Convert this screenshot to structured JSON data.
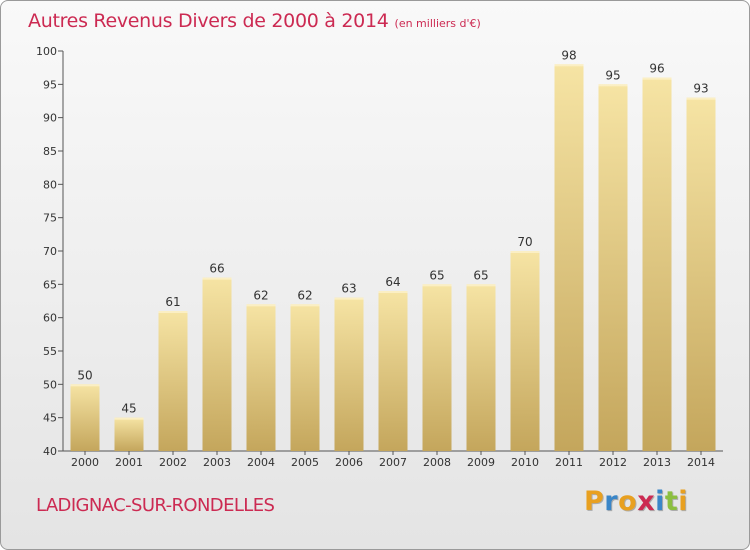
{
  "title": "Autres Revenus Divers de 2000 à 2014",
  "subtitle": "(en milliers d'€)",
  "place": "LADIGNAC-SUR-RONDELLES",
  "logo": {
    "letters": [
      "P",
      "r",
      "o",
      "x",
      "i",
      "t",
      "i"
    ],
    "colors": [
      "#e8a020",
      "#3a86c8",
      "#e8a020",
      "#cc2a52",
      "#3a86c8",
      "#8cbf3f",
      "#e8a020"
    ]
  },
  "colors": {
    "title": "#cc2a52",
    "bar_light": "#f3dd9c",
    "bar_dark": "#c9ad63"
  },
  "chart_data": {
    "type": "bar",
    "categories": [
      "2000",
      "2001",
      "2002",
      "2003",
      "2004",
      "2005",
      "2006",
      "2007",
      "2008",
      "2009",
      "2010",
      "2011",
      "2012",
      "2013",
      "2014"
    ],
    "values": [
      50,
      45,
      61,
      66,
      62,
      62,
      63,
      64,
      65,
      65,
      70,
      98,
      95,
      96,
      93
    ],
    "ylim": [
      40,
      100
    ],
    "yticks": [
      40,
      45,
      50,
      55,
      60,
      65,
      70,
      75,
      80,
      85,
      90,
      95,
      100
    ],
    "grid": false,
    "data_labels": true
  }
}
